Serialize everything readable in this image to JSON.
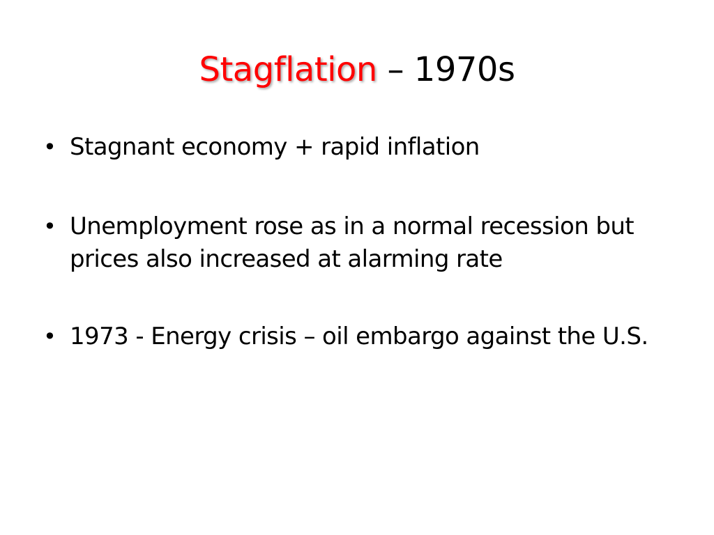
{
  "slide": {
    "title": {
      "highlight": "Stagflation",
      "rest": " – 1970s",
      "highlight_color": "#ff0000"
    },
    "bullet_symbol": "•",
    "bullets": [
      {
        "text": "Stagnant economy + rapid inflation"
      },
      {
        "text": "Unemployment rose as in a normal recession but prices also increased at alarming rate"
      },
      {
        "text": "1973 - Energy crisis – oil embargo against the U.S."
      }
    ]
  }
}
